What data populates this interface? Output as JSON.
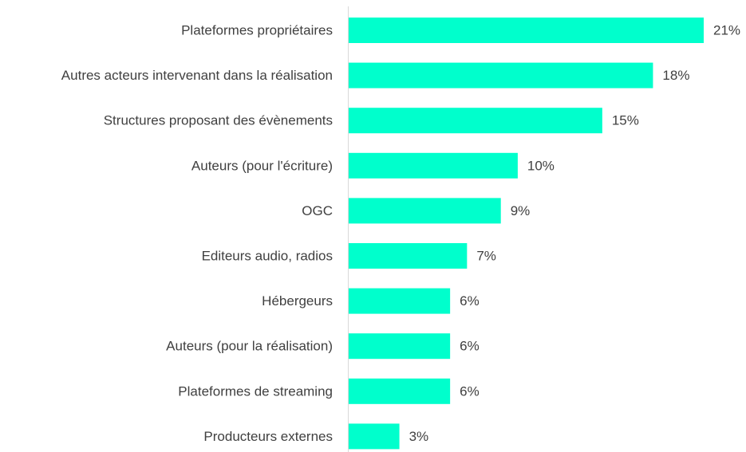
{
  "chart_data": {
    "type": "bar",
    "orientation": "horizontal",
    "categories": [
      "Plateformes propriétaires",
      "Autres acteurs intervenant dans la réalisation",
      "Structures proposant des évènements",
      "Auteurs (pour l'écriture)",
      "OGC",
      "Editeurs audio, radios",
      "Hébergeurs",
      "Auteurs (pour la réalisation)",
      "Plateformes de streaming",
      "Producteurs externes"
    ],
    "values": [
      21,
      18,
      15,
      10,
      9,
      7,
      6,
      6,
      6,
      3
    ],
    "value_labels": [
      "21%",
      "18%",
      "15%",
      "10%",
      "9%",
      "7%",
      "6%",
      "6%",
      "6%",
      "3%"
    ],
    "color": "#00ffcc",
    "xlim": [
      0,
      21
    ]
  }
}
